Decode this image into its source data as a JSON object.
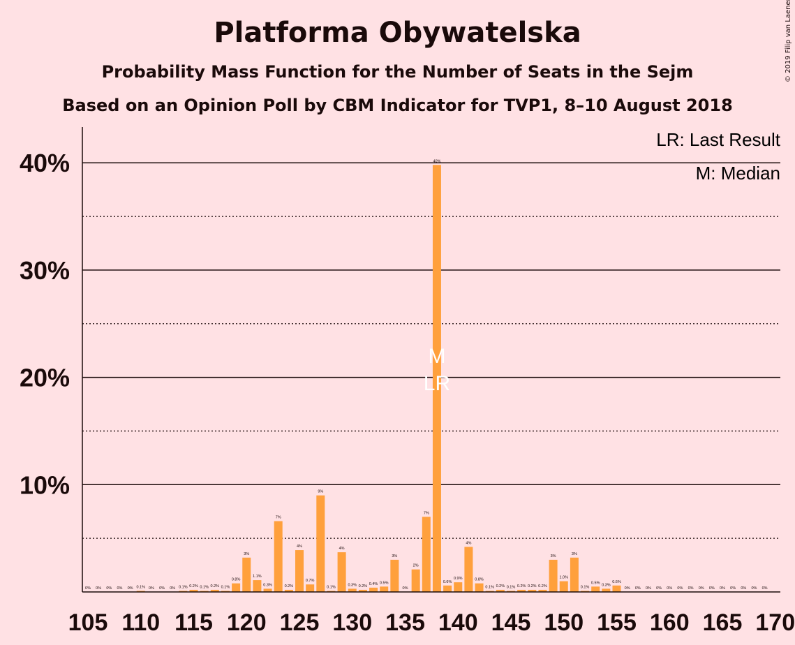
{
  "header": {
    "title": "Platforma Obywatelska",
    "subtitle": "Probability Mass Function for the Number of Seats in the Sejm",
    "subtitle2": "Based on an Opinion Poll by CBM Indicator for TVP1, 8–10 August 2018",
    "copyright": "© 2019 Filip van Laenen"
  },
  "legend": {
    "last_result": "LR: Last Result",
    "median": "M: Median"
  },
  "markers": {
    "median_label": "M",
    "last_result_label": "LR",
    "median_seat": 138,
    "last_result_seat": 138
  },
  "colors": {
    "background": "#ffe1e4",
    "bar": "#ffa03c",
    "text": "#1a0a0a",
    "marker": "#ffffff"
  },
  "chart_data": {
    "type": "bar",
    "title": "Platforma Obywatelska",
    "xlabel": "",
    "ylabel": "",
    "ylim": [
      0,
      0.43
    ],
    "grid": "horizontal, solid at 10% steps, dotted at 5% steps",
    "y_ticks": [
      {
        "value": 0.1,
        "label": "10%"
      },
      {
        "value": 0.2,
        "label": "20%"
      },
      {
        "value": 0.3,
        "label": "30%"
      },
      {
        "value": 0.4,
        "label": "40%"
      }
    ],
    "x_ticks": [
      105,
      110,
      115,
      120,
      125,
      130,
      135,
      140,
      145,
      150,
      155,
      160,
      165,
      170
    ],
    "x": [
      105,
      106,
      107,
      108,
      109,
      110,
      111,
      112,
      113,
      114,
      115,
      116,
      117,
      118,
      119,
      120,
      121,
      122,
      123,
      124,
      125,
      126,
      127,
      128,
      129,
      130,
      131,
      132,
      133,
      134,
      135,
      136,
      137,
      138,
      139,
      140,
      141,
      142,
      143,
      144,
      145,
      146,
      147,
      148,
      149,
      150,
      151,
      152,
      153,
      154,
      155,
      156,
      157,
      158,
      159,
      160,
      161,
      162,
      163,
      164,
      165,
      166,
      167,
      168,
      169
    ],
    "values": [
      0,
      0,
      0,
      0,
      0,
      0.001,
      0,
      0,
      0,
      0.001,
      0.002,
      0.001,
      0.002,
      0.001,
      0.008,
      0.032,
      0.011,
      0.003,
      0.066,
      0.002,
      0.039,
      0.007,
      0.09,
      0.001,
      0.037,
      0.003,
      0.002,
      0.004,
      0.005,
      0.03,
      0,
      0.021,
      0.07,
      0.398,
      0.006,
      0.009,
      0.042,
      0.008,
      0.001,
      0.002,
      0.001,
      0.002,
      0.002,
      0.002,
      0.03,
      0.01,
      0.032,
      0.001,
      0.005,
      0.003,
      0.006,
      0,
      0,
      0,
      0,
      0,
      0,
      0,
      0,
      0,
      0,
      0,
      0,
      0,
      0
    ],
    "data_labels": [
      "0%",
      "0%",
      "0%",
      "0%",
      "0%",
      "0.1%",
      "0%",
      "0%",
      "0%",
      "0.1%",
      "0.2%",
      "0.1%",
      "0.2%",
      "0.1%",
      "0.8%",
      "3%",
      "1.1%",
      "0.3%",
      "7%",
      "0.2%",
      "4%",
      "0.7%",
      "9%",
      "0.1%",
      "4%",
      "0.3%",
      "0.2%",
      "0.4%",
      "0.5%",
      "3%",
      "0%",
      "2%",
      "7%",
      "40%",
      "0.6%",
      "0.9%",
      "4%",
      "0.8%",
      "0.1%",
      "0.2%",
      "0.1%",
      "0.2%",
      "0.2%",
      "0.2%",
      "3%",
      "1.0%",
      "3%",
      "0.1%",
      "0.5%",
      "0.3%",
      "0.6%",
      "0%",
      "0%",
      "0%",
      "0%",
      "0%",
      "0%",
      "0%",
      "0%",
      "0%",
      "0%",
      "0%",
      "0%",
      "0%",
      "0%"
    ]
  }
}
